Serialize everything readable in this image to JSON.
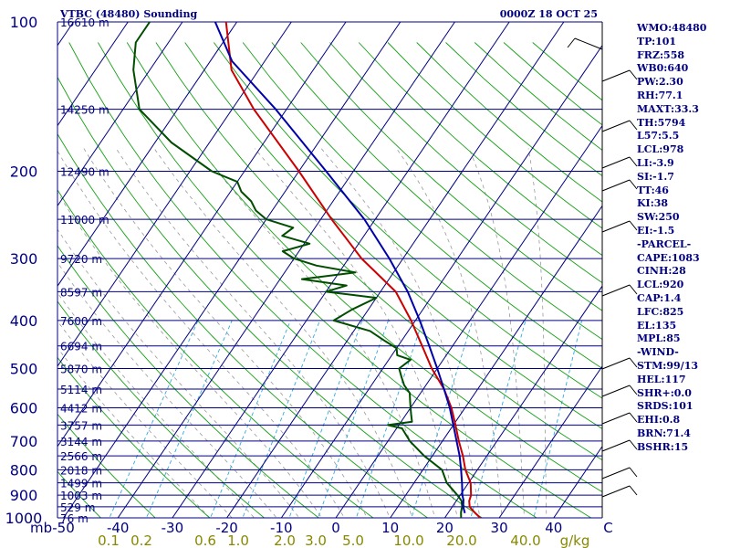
{
  "header": {
    "station": "VTBC (48480) Sounding",
    "time": "0000Z 18 OCT 25"
  },
  "chart_data": {
    "type": "line",
    "title": "VTBC (48480) Sounding",
    "subtitle": "0000Z 18 OCT 25",
    "xlabel": "°C",
    "ylabel": "mb",
    "xlim": [
      -50,
      50
    ],
    "ylim": [
      1000,
      100
    ],
    "temp_ticks": [
      {
        "label": "-50",
        "v": -50
      },
      {
        "label": "-40",
        "v": -40
      },
      {
        "label": "-30",
        "v": -30
      },
      {
        "label": "-20",
        "v": -20
      },
      {
        "label": "-10",
        "v": -10
      },
      {
        "label": "0",
        "v": 0
      },
      {
        "label": "10",
        "v": 10
      },
      {
        "label": "20",
        "v": 20
      },
      {
        "label": "30",
        "v": 30
      },
      {
        "label": "40",
        "v": 40
      },
      {
        "label": "C",
        "v": 50
      }
    ],
    "axis_unit_left": "mb",
    "pressure_ticks": [
      {
        "label": "100",
        "p": 100
      },
      {
        "label": "200",
        "p": 200
      },
      {
        "label": "300",
        "p": 300
      },
      {
        "label": "400",
        "p": 400
      },
      {
        "label": "500",
        "p": 500
      },
      {
        "label": "600",
        "p": 600
      },
      {
        "label": "700",
        "p": 700
      },
      {
        "label": "800",
        "p": 800
      },
      {
        "label": "900",
        "p": 900
      },
      {
        "label": "1000",
        "p": 1000
      }
    ],
    "height_labels": [
      {
        "label": "16610 m",
        "p": 100
      },
      {
        "label": "14250 m",
        "p": 150
      },
      {
        "label": "12490 m",
        "p": 200
      },
      {
        "label": "11000 m",
        "p": 250
      },
      {
        "label": "9720 m",
        "p": 300
      },
      {
        "label": "8597 m",
        "p": 350
      },
      {
        "label": "7600 m",
        "p": 400
      },
      {
        "label": "6694 m",
        "p": 450
      },
      {
        "label": "5870 m",
        "p": 500
      },
      {
        "label": "5114 m",
        "p": 550
      },
      {
        "label": "4412 m",
        "p": 600
      },
      {
        "label": "3757 m",
        "p": 650
      },
      {
        "label": "3144 m",
        "p": 700
      },
      {
        "label": "2566 m",
        "p": 750
      },
      {
        "label": "2018 m",
        "p": 800
      },
      {
        "label": "1499 m",
        "p": 850
      },
      {
        "label": "1003 m",
        "p": 900
      },
      {
        "label": "529 m",
        "p": 950
      },
      {
        "label": "76 m",
        "p": 1000
      }
    ],
    "mixing_ratio_labels": [
      {
        "label": "0.1",
        "v": 0.1
      },
      {
        "label": "0.2",
        "v": 0.2
      },
      {
        "label": "0.6",
        "v": 0.6
      },
      {
        "label": "1.0",
        "v": 1.0
      },
      {
        "label": "2.0",
        "v": 2.0
      },
      {
        "label": "3.0",
        "v": 3.0
      },
      {
        "label": "5.0",
        "v": 5.0
      },
      {
        "label": "10.0",
        "v": 10.0
      },
      {
        "label": "20.0",
        "v": 20.0
      },
      {
        "label": "40.0",
        "v": 40.0
      }
    ],
    "mixing_ratio_unit": "g/kg",
    "series": [
      {
        "name": "Temperature",
        "color": "#cc0000",
        "points": [
          [
            1000,
            26.5
          ],
          [
            975,
            24.8
          ],
          [
            950,
            23.2
          ],
          [
            925,
            22.4
          ],
          [
            900,
            22.0
          ],
          [
            850,
            20.4
          ],
          [
            800,
            17.8
          ],
          [
            750,
            15.6
          ],
          [
            700,
            13.0
          ],
          [
            650,
            10.4
          ],
          [
            600,
            7.5
          ],
          [
            550,
            3.8
          ],
          [
            500,
            -1.0
          ],
          [
            450,
            -5.6
          ],
          [
            400,
            -10.8
          ],
          [
            350,
            -17.2
          ],
          [
            300,
            -27.6
          ],
          [
            250,
            -38.0
          ],
          [
            200,
            -50.0
          ],
          [
            150,
            -66.0
          ],
          [
            125,
            -75.0
          ],
          [
            100,
            -82.0
          ]
        ]
      },
      {
        "name": "Dewpoint",
        "color": "#004d00",
        "points": [
          [
            1000,
            23.0
          ],
          [
            975,
            22.3
          ],
          [
            950,
            21.8
          ],
          [
            925,
            21.0
          ],
          [
            900,
            19.5
          ],
          [
            850,
            16.0
          ],
          [
            800,
            13.5
          ],
          [
            750,
            8.5
          ],
          [
            700,
            4.0
          ],
          [
            660,
            1.0
          ],
          [
            650,
            -2.0
          ],
          [
            640,
            2.0
          ],
          [
            620,
            1.0
          ],
          [
            600,
            0.0
          ],
          [
            580,
            -1.0
          ],
          [
            560,
            -2.0
          ],
          [
            540,
            -4.0
          ],
          [
            520,
            -5.5
          ],
          [
            500,
            -7.0
          ],
          [
            480,
            -6.0
          ],
          [
            470,
            -9.0
          ],
          [
            455,
            -10.0
          ],
          [
            440,
            -13.0
          ],
          [
            420,
            -17.0
          ],
          [
            400,
            -25.0
          ],
          [
            380,
            -23.0
          ],
          [
            360,
            -20.0
          ],
          [
            350,
            -30.0
          ],
          [
            340,
            -27.0
          ],
          [
            330,
            -36.0
          ],
          [
            320,
            -27.0
          ],
          [
            310,
            -35.0
          ],
          [
            300,
            -40.0
          ],
          [
            290,
            -43.0
          ],
          [
            280,
            -39.0
          ],
          [
            270,
            -45.0
          ],
          [
            260,
            -44.0
          ],
          [
            250,
            -50.0
          ],
          [
            240,
            -53.0
          ],
          [
            230,
            -55.0
          ],
          [
            220,
            -58.0
          ],
          [
            210,
            -60.0
          ],
          [
            200,
            -66.0
          ],
          [
            175,
            -77.0
          ],
          [
            150,
            -87.0
          ],
          [
            125,
            -93.0
          ],
          [
            110,
            -96.0
          ],
          [
            100,
            -96.0
          ]
        ]
      },
      {
        "name": "Parcel",
        "color": "#0000aa",
        "points": [
          [
            978,
            23.1
          ],
          [
            950,
            22.0
          ],
          [
            920,
            21.2
          ],
          [
            900,
            20.4
          ],
          [
            850,
            18.8
          ],
          [
            800,
            17.0
          ],
          [
            750,
            15.0
          ],
          [
            700,
            12.6
          ],
          [
            650,
            10.0
          ],
          [
            600,
            7.2
          ],
          [
            550,
            3.8
          ],
          [
            500,
            0.0
          ],
          [
            450,
            -4.3
          ],
          [
            400,
            -9.2
          ],
          [
            350,
            -15.0
          ],
          [
            300,
            -22.5
          ],
          [
            250,
            -32.0
          ],
          [
            200,
            -45.0
          ],
          [
            150,
            -62.0
          ],
          [
            120,
            -76.0
          ],
          [
            100,
            -84.0
          ]
        ]
      }
    ]
  },
  "sidebar": {
    "lines": [
      "WMO:48480",
      "TP:101",
      "FRZ:558",
      "WB0:640",
      "PW:2.30",
      "RH:77.1",
      "MAXT:33.3",
      "TH:5794",
      "L57:5.5",
      "LCL:978",
      "LI:-3.9",
      "SI:-1.7",
      "TT:46",
      "KI:38",
      "SW:250",
      "EI:-1.5",
      "-PARCEL-",
      "CAPE:1083",
      "CINH:28",
      "LCL:920",
      "CAP:1.4",
      "LFC:825",
      "EL:135",
      "MPL:85",
      "-WIND-",
      "STM:99/13",
      "HEL:117",
      "SHR+:0.0",
      "SRDS:101",
      "EHI:0.8",
      "BRN:71.4",
      "BSHR:15"
    ]
  },
  "colors": {
    "navy": "#000080",
    "dry_adiabat": "#16a016",
    "moist_adiabat": "#999999",
    "mixing_ratio": "#33aadd",
    "mix_label": "#888800"
  }
}
